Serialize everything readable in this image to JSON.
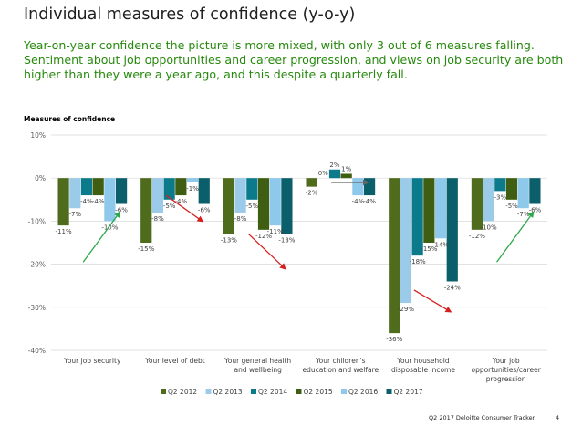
{
  "page": {
    "title": "Individual measures of confidence (y-o-y)",
    "subtitle": "Year-on-year confidence the picture is more mixed, with only 3 out of 6 measures falling. Sentiment about job opportunities and career progression, and views on job security are both higher than they were a year ago, and this despite a quarterly fall.",
    "footer_source": "Q2 2017 Deloitte Consumer Tracker",
    "page_number": "4"
  },
  "colors": {
    "Q2 2012": "#4f6b1c",
    "Q2 2013": "#9ccbe9",
    "Q2 2014": "#0b7b8c",
    "Q2 2015": "#3f5e12",
    "Q2 2016": "#8ec9ec",
    "Q2 2017": "#0a5f6a",
    "trend_up": "#2aa84a",
    "trend_down": "#d62020",
    "trend_flat": "#666666"
  },
  "chart_data": {
    "type": "bar",
    "title": "Measures of confidence",
    "categories": [
      [
        "Your job security"
      ],
      [
        "Your level of debt"
      ],
      [
        "Your general health",
        "and wellbeing"
      ],
      [
        "Your children's",
        "education and welfare"
      ],
      [
        "Your household",
        "disposable income"
      ],
      [
        "Your job",
        "opportunities/career",
        "progression"
      ]
    ],
    "series": [
      {
        "name": "Q2 2012",
        "values": [
          -11,
          -15,
          -13,
          -2,
          -36,
          -12
        ]
      },
      {
        "name": "Q2 2013",
        "values": [
          -7,
          -8,
          -8,
          0,
          -29,
          -10
        ]
      },
      {
        "name": "Q2 2014",
        "values": [
          -4,
          -5,
          -5,
          2,
          -18,
          -3
        ]
      },
      {
        "name": "Q2 2015",
        "values": [
          -4,
          -4,
          -12,
          1,
          -15,
          -5
        ]
      },
      {
        "name": "Q2 2016",
        "values": [
          -10,
          -1,
          -11,
          -4,
          -14,
          -7
        ]
      },
      {
        "name": "Q2 2017",
        "values": [
          -6,
          -6,
          -13,
          -4,
          -24,
          -6
        ]
      }
    ],
    "ylim": [
      -40,
      10
    ],
    "yticks": [
      10,
      0,
      -10,
      -20,
      -30,
      -40
    ],
    "ytick_labels": [
      "10%",
      "0%",
      "-10%",
      "-20%",
      "-30%",
      "-40%"
    ],
    "value_suffix": "%",
    "legend_position": "bottom",
    "trend_arrows": [
      "up",
      "down",
      "down",
      "flat",
      "down",
      "up"
    ]
  }
}
